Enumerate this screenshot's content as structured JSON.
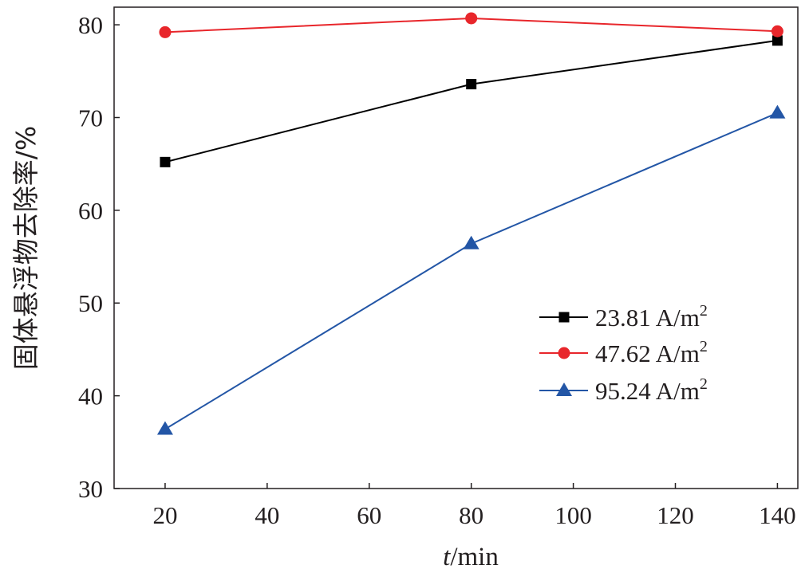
{
  "chart_data": {
    "type": "line",
    "title": "",
    "xlabel_italic": "t",
    "xlabel_rest": "/min",
    "ylabel": "固体悬浮物去除率/%",
    "xlim": [
      10,
      144
    ],
    "ylim": [
      30,
      81.9
    ],
    "xticks": [
      20,
      40,
      60,
      80,
      100,
      120,
      140
    ],
    "yticks": [
      30,
      40,
      50,
      60,
      70,
      80
    ],
    "x": [
      20,
      80,
      140
    ],
    "legend_position": "center-right",
    "series": [
      {
        "name": "23.81 A/m",
        "sup": "2",
        "color": "#000000",
        "marker": "square",
        "values": [
          65.2,
          73.6,
          78.3
        ]
      },
      {
        "name": "47.62 A/m",
        "sup": "2",
        "color": "#e8262b",
        "marker": "circle",
        "values": [
          79.2,
          80.7,
          79.3
        ]
      },
      {
        "name": "95.24 A/m",
        "sup": "2",
        "color": "#2356a6",
        "marker": "triangle",
        "values": [
          36.4,
          56.4,
          70.5
        ]
      }
    ]
  }
}
